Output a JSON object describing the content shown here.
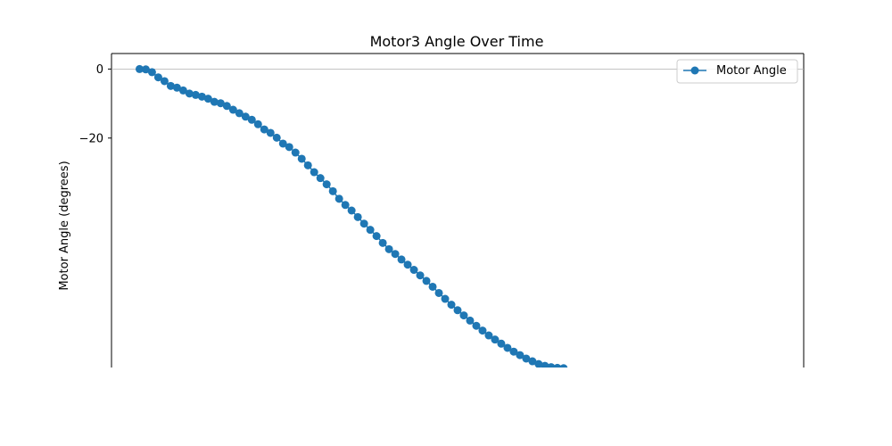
{
  "chart_data": {
    "type": "line",
    "title": "Motor3 Angle Over Time",
    "xlabel": "",
    "ylabel": "Motor Angle (degrees)",
    "ylim": [
      -86.5,
      4.5
    ],
    "yticks": [
      0,
      -20
    ],
    "grid": "horizontal-at-zero",
    "legend_position": "top-right",
    "color": "#1f77b4",
    "series": [
      {
        "name": "Motor Angle",
        "x": [
          0,
          1,
          2,
          3,
          4,
          5,
          6,
          7,
          8,
          9,
          10,
          11,
          12,
          13,
          14,
          15,
          16,
          17,
          18,
          19,
          20,
          21,
          22,
          23,
          24,
          25,
          26,
          27,
          28,
          29,
          30,
          31,
          32,
          33,
          34,
          35,
          36,
          37,
          38,
          39,
          40,
          41,
          42,
          43,
          44,
          45,
          46,
          47,
          48,
          49,
          50,
          51,
          52,
          53,
          54,
          55,
          56,
          57,
          58,
          59,
          60,
          61,
          62,
          63,
          64,
          65,
          66,
          67,
          68
        ],
        "values": [
          0,
          -0.1,
          -0.9,
          -2.4,
          -3.5,
          -4.9,
          -5.4,
          -6.2,
          -7.1,
          -7.5,
          -8.0,
          -8.6,
          -9.5,
          -9.9,
          -10.7,
          -11.8,
          -12.8,
          -13.8,
          -14.7,
          -16.0,
          -17.5,
          -18.5,
          -19.9,
          -21.6,
          -22.6,
          -24.2,
          -26.0,
          -27.9,
          -29.9,
          -31.6,
          -33.4,
          -35.4,
          -37.6,
          -39.4,
          -41.0,
          -42.9,
          -44.8,
          -46.6,
          -48.4,
          -50.4,
          -52.2,
          -53.6,
          -55.2,
          -56.7,
          -58.2,
          -59.8,
          -61.4,
          -63.1,
          -64.9,
          -66.6,
          -68.3,
          -69.9,
          -71.4,
          -72.9,
          -74.4,
          -75.8,
          -77.2,
          -78.4,
          -79.6,
          -80.8,
          -81.9,
          -82.9,
          -83.9,
          -84.7,
          -85.5,
          -86.0,
          -86.4,
          -86.6,
          -86.7
        ]
      }
    ]
  }
}
